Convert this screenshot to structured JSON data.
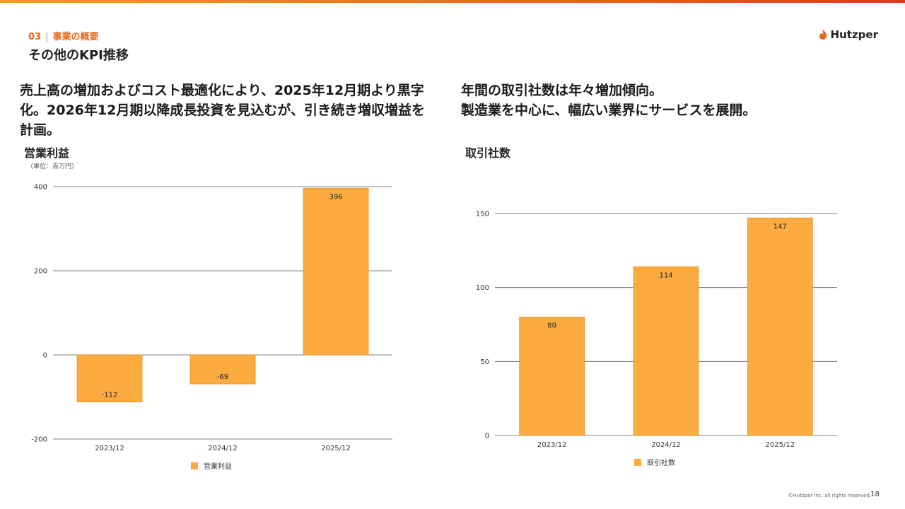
{
  "header": {
    "section_number": "03",
    "section_title": "事業の概要",
    "page_title": "その他のKPI推移",
    "logo_text": "Hutzper"
  },
  "left": {
    "headline": "売上高の増加およびコスト最適化により、2025年12月期より黒字化。2026年12月期以降成長投資を見込むが、引き続き増収増益を計画。",
    "chart_title": "営業利益",
    "unit": "（単位：百万円）"
  },
  "right": {
    "headline_line1": "年間の取引社数は年々増加傾向。",
    "headline_line2": "製造業を中心に、幅広い業界にサービスを展開。",
    "chart_title": "取引社数"
  },
  "colors": {
    "bar": "#fbab3f",
    "bar_edge": "#e59524",
    "accent": "#e8691c"
  },
  "chart_data": [
    {
      "type": "bar",
      "title": "営業利益",
      "categories": [
        "2023/12",
        "2024/12",
        "2025/12"
      ],
      "values": [
        -112,
        -69,
        396
      ],
      "ylim": [
        -200,
        400
      ],
      "yticks": [
        -200,
        0,
        200,
        400
      ],
      "legend": "営業利益",
      "legend_position": "bottom",
      "unit": "百万円"
    },
    {
      "type": "bar",
      "title": "取引社数",
      "categories": [
        "2023/12",
        "2024/12",
        "2025/12"
      ],
      "values": [
        80,
        114,
        147
      ],
      "ylim": [
        0,
        150
      ],
      "yticks": [
        0,
        50,
        100,
        150
      ],
      "legend": "取引社数",
      "legend_position": "bottom"
    }
  ],
  "footer": {
    "copyright": "©Hutzper Inc. all rights reserved.",
    "page_number": "18"
  }
}
